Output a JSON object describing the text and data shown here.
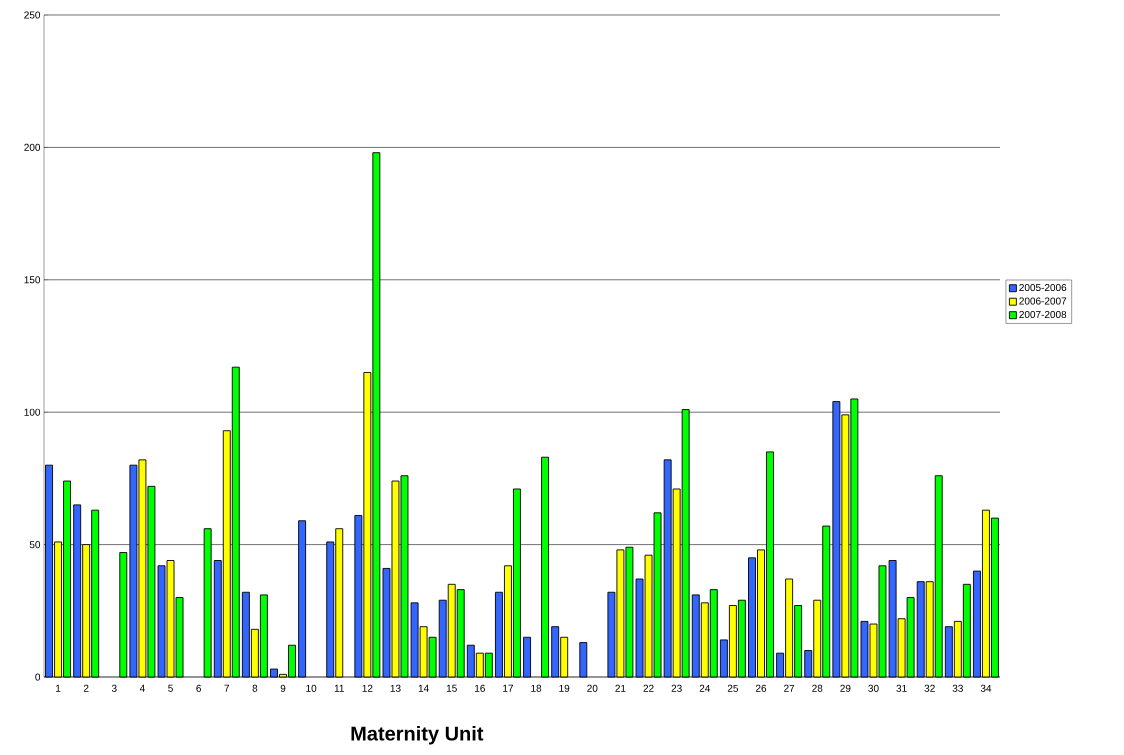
{
  "chart_data": {
    "type": "bar",
    "xlabel": "Maternity Unit",
    "categories": [
      "1",
      "2",
      "3",
      "4",
      "5",
      "6",
      "7",
      "8",
      "9",
      "10",
      "11",
      "12",
      "13",
      "14",
      "15",
      "16",
      "17",
      "18",
      "19",
      "20",
      "21",
      "22",
      "23",
      "24",
      "25",
      "26",
      "27",
      "28",
      "29",
      "30",
      "31",
      "32",
      "33",
      "34"
    ],
    "series": [
      {
        "name": "2005-2006",
        "color": "#3366ff",
        "values": [
          80,
          65,
          null,
          80,
          42,
          null,
          44,
          32,
          3,
          59,
          51,
          61,
          41,
          28,
          29,
          12,
          32,
          15,
          19,
          13,
          32,
          37,
          82,
          31,
          14,
          45,
          9,
          10,
          104,
          21,
          44,
          36,
          19,
          40
        ]
      },
      {
        "name": "2006-2007",
        "color": "#ffff00",
        "values": [
          51,
          50,
          null,
          82,
          44,
          null,
          93,
          18,
          1,
          null,
          56,
          115,
          74,
          19,
          35,
          9,
          42,
          null,
          15,
          null,
          48,
          46,
          71,
          28,
          27,
          48,
          37,
          29,
          99,
          20,
          22,
          36,
          21,
          63
        ]
      },
      {
        "name": "2007-2008",
        "color": "#00ff00",
        "values": [
          74,
          63,
          47,
          72,
          30,
          56,
          117,
          31,
          12,
          null,
          null,
          198,
          76,
          15,
          33,
          9,
          71,
          83,
          null,
          null,
          49,
          62,
          101,
          33,
          29,
          85,
          27,
          57,
          105,
          42,
          30,
          76,
          35,
          60
        ]
      }
    ],
    "ylim": [
      0,
      250
    ],
    "yticks": [
      0,
      50,
      100,
      150,
      200,
      250
    ],
    "grid": "y",
    "legend": "right"
  }
}
